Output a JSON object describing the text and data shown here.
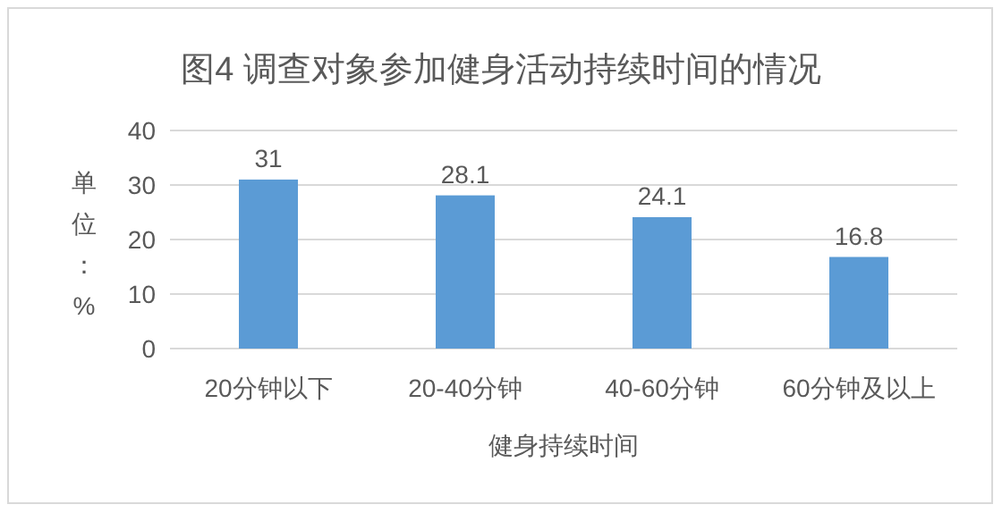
{
  "chart_data": {
    "type": "bar",
    "title": "图4 调查对象参加健身活动持续时间的情况",
    "xlabel": "健身持续时间",
    "ylabel": "单位：%",
    "categories": [
      "20分钟以下",
      "20-40分钟",
      "40-60分钟",
      "60分钟及以上"
    ],
    "series": [
      {
        "color": "#5b9bd5",
        "values": [
          31,
          28.1,
          24.1,
          16.8
        ]
      }
    ],
    "ylim": [
      0,
      40
    ],
    "yticks": [
      0,
      10,
      20,
      30,
      40
    ],
    "grid": "y",
    "data_labels": true
  }
}
